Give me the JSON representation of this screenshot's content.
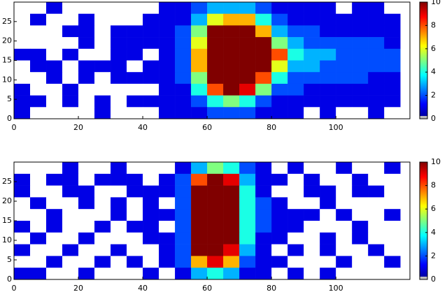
{
  "chart_data": [
    {
      "type": "heatmap",
      "xbins": [
        0,
        5,
        10,
        15,
        20,
        25,
        30,
        35,
        40,
        45,
        50,
        55,
        60,
        65,
        70,
        75,
        80,
        85,
        90,
        95,
        100,
        105,
        110,
        115,
        120
      ],
      "ybins": [
        30,
        27,
        24,
        21,
        18,
        15,
        12,
        9,
        6,
        3,
        0
      ],
      "values": [
        [
          0,
          0,
          1,
          0,
          0,
          0,
          0,
          0,
          0,
          1,
          1,
          2,
          3,
          3,
          3,
          2,
          1,
          1,
          1,
          1,
          0,
          1,
          1,
          0
        ],
        [
          0,
          1,
          0,
          0,
          1,
          0,
          0,
          0,
          1,
          1,
          1,
          3,
          6,
          7,
          7,
          4,
          2,
          1,
          1,
          1,
          1,
          1,
          1,
          1
        ],
        [
          0,
          0,
          0,
          1,
          1,
          0,
          1,
          1,
          1,
          1,
          2,
          5,
          10,
          10,
          10,
          7,
          3,
          2,
          2,
          1,
          1,
          1,
          1,
          1
        ],
        [
          0,
          0,
          0,
          0,
          1,
          0,
          1,
          1,
          1,
          1,
          2,
          6,
          10,
          10,
          10,
          10,
          5,
          3,
          2,
          2,
          2,
          2,
          2,
          1
        ],
        [
          1,
          1,
          0,
          1,
          0,
          0,
          1,
          1,
          0,
          1,
          2,
          7,
          10,
          10,
          10,
          10,
          8,
          4,
          3,
          3,
          2,
          2,
          2,
          2
        ],
        [
          0,
          1,
          1,
          0,
          1,
          1,
          1,
          0,
          1,
          1,
          2,
          7,
          10,
          10,
          10,
          10,
          6,
          3,
          3,
          2,
          2,
          2,
          2,
          2
        ],
        [
          0,
          0,
          1,
          0,
          1,
          0,
          1,
          1,
          1,
          1,
          2,
          5,
          10,
          10,
          10,
          8,
          4,
          2,
          2,
          2,
          2,
          2,
          1,
          1
        ],
        [
          1,
          0,
          0,
          1,
          0,
          0,
          0,
          0,
          0,
          1,
          1,
          4,
          8,
          10,
          9,
          5,
          2,
          2,
          1,
          1,
          1,
          1,
          1,
          1
        ],
        [
          1,
          1,
          0,
          1,
          0,
          1,
          0,
          1,
          1,
          1,
          1,
          2,
          4,
          5,
          4,
          2,
          1,
          1,
          1,
          1,
          1,
          1,
          1,
          1
        ],
        [
          1,
          0,
          0,
          0,
          0,
          1,
          0,
          0,
          0,
          1,
          1,
          1,
          2,
          2,
          2,
          1,
          1,
          1,
          0,
          1,
          0,
          0,
          1,
          0
        ]
      ],
      "xlim": [
        0,
        123
      ],
      "ylim": [
        0,
        30
      ],
      "xticks": [
        0,
        20,
        40,
        60,
        80,
        100
      ],
      "yticks": [
        0,
        5,
        10,
        15,
        20,
        25
      ],
      "colorbar": {
        "lim": [
          0,
          10
        ],
        "ticks": [
          0,
          2,
          4,
          6,
          8,
          10
        ]
      }
    },
    {
      "type": "heatmap",
      "xbins": [
        0,
        5,
        10,
        15,
        20,
        25,
        30,
        35,
        40,
        45,
        50,
        55,
        60,
        65,
        70,
        75,
        80,
        85,
        90,
        95,
        100,
        105,
        110,
        115,
        120
      ],
      "ybins": [
        30,
        27,
        24,
        21,
        18,
        15,
        12,
        9,
        6,
        3,
        0
      ],
      "values": [
        [
          0,
          0,
          0,
          1,
          0,
          0,
          1,
          0,
          0,
          0,
          1,
          3,
          5,
          4,
          2,
          1,
          0,
          1,
          0,
          0,
          1,
          0,
          0,
          1
        ],
        [
          1,
          0,
          1,
          1,
          0,
          1,
          1,
          1,
          0,
          1,
          2,
          8,
          10,
          9,
          3,
          1,
          1,
          0,
          1,
          0,
          0,
          1,
          0,
          0
        ],
        [
          1,
          0,
          0,
          1,
          1,
          0,
          0,
          1,
          1,
          1,
          2,
          10,
          10,
          10,
          4,
          1,
          0,
          0,
          1,
          1,
          0,
          1,
          1,
          0
        ],
        [
          0,
          1,
          0,
          0,
          1,
          0,
          1,
          0,
          1,
          0,
          2,
          10,
          10,
          10,
          4,
          2,
          1,
          0,
          0,
          1,
          0,
          0,
          0,
          0
        ],
        [
          0,
          0,
          1,
          0,
          0,
          0,
          1,
          0,
          1,
          1,
          2,
          10,
          10,
          10,
          4,
          2,
          1,
          1,
          1,
          0,
          1,
          0,
          0,
          1
        ],
        [
          1,
          0,
          1,
          0,
          0,
          1,
          0,
          1,
          1,
          0,
          2,
          10,
          10,
          10,
          4,
          2,
          1,
          1,
          0,
          0,
          0,
          1,
          0,
          0
        ],
        [
          0,
          1,
          0,
          0,
          1,
          0,
          0,
          0,
          1,
          1,
          2,
          10,
          10,
          10,
          4,
          1,
          1,
          0,
          0,
          1,
          0,
          1,
          0,
          0
        ],
        [
          1,
          0,
          0,
          1,
          0,
          0,
          1,
          0,
          0,
          1,
          2,
          10,
          10,
          9,
          3,
          1,
          0,
          1,
          0,
          1,
          0,
          0,
          1,
          0
        ],
        [
          0,
          0,
          1,
          0,
          0,
          1,
          0,
          1,
          0,
          1,
          2,
          7,
          9,
          7,
          2,
          1,
          1,
          0,
          0,
          0,
          1,
          0,
          0,
          1
        ],
        [
          1,
          1,
          0,
          0,
          1,
          0,
          0,
          0,
          1,
          0,
          1,
          3,
          4,
          3,
          1,
          1,
          0,
          1,
          0,
          1,
          0,
          0,
          0,
          0
        ]
      ],
      "xlim": [
        0,
        123
      ],
      "ylim": [
        0,
        30
      ],
      "xticks": [
        0,
        20,
        40,
        60,
        80,
        100
      ],
      "yticks": [
        0,
        5,
        10,
        15,
        20,
        25
      ],
      "colorbar": {
        "lim": [
          0,
          10
        ],
        "ticks": [
          0,
          2,
          4,
          6,
          8,
          10
        ]
      }
    }
  ]
}
